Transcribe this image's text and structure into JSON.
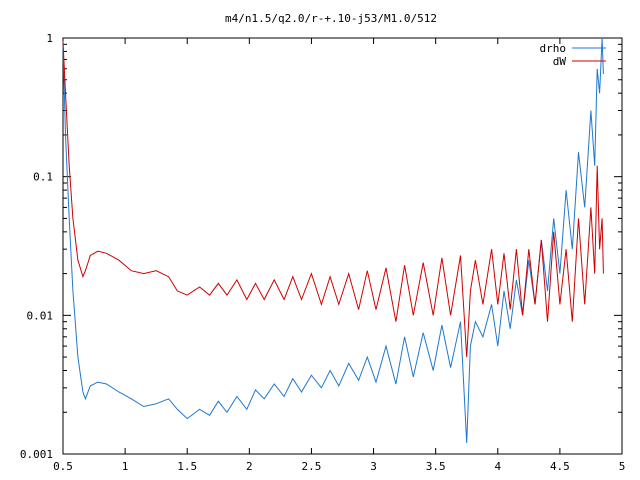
{
  "chart_data": {
    "type": "line",
    "title": "m4/n1.5/q2.0/r-+.10-j53/M1.0/512",
    "xlabel": "",
    "ylabel": "",
    "xlim": [
      0.5,
      5
    ],
    "ylim": [
      0.001,
      1
    ],
    "yscale": "log",
    "grid": false,
    "legend": "top-right",
    "x_ticks": [
      0.5,
      1,
      1.5,
      2,
      2.5,
      3,
      3.5,
      4,
      4.5,
      5
    ],
    "x_tick_labels": [
      "0.5",
      "1",
      "1.5",
      "2",
      "2.5",
      "3",
      "3.5",
      "4",
      "4.5",
      "5"
    ],
    "y_ticks": [
      0.001,
      0.01,
      0.1,
      1
    ],
    "y_tick_labels": [
      "0.001",
      "0.01",
      "0.1",
      "1"
    ],
    "series": [
      {
        "name": "drho",
        "color": "#1f78d0",
        "x": [
          0.5,
          0.52,
          0.55,
          0.58,
          0.62,
          0.66,
          0.68,
          0.72,
          0.78,
          0.85,
          0.95,
          1.05,
          1.15,
          1.25,
          1.35,
          1.42,
          1.5,
          1.6,
          1.68,
          1.75,
          1.82,
          1.9,
          1.98,
          2.05,
          2.12,
          2.2,
          2.28,
          2.35,
          2.42,
          2.5,
          2.58,
          2.65,
          2.72,
          2.8,
          2.88,
          2.95,
          3.02,
          3.1,
          3.18,
          3.25,
          3.32,
          3.4,
          3.48,
          3.55,
          3.62,
          3.7,
          3.75,
          3.78,
          3.82,
          3.88,
          3.95,
          4.0,
          4.05,
          4.1,
          4.15,
          4.2,
          4.25,
          4.3,
          4.35,
          4.4,
          4.45,
          4.5,
          4.55,
          4.6,
          4.65,
          4.7,
          4.75,
          4.78,
          4.8,
          4.82,
          4.84,
          4.85
        ],
        "values": [
          0.9,
          0.2,
          0.05,
          0.015,
          0.005,
          0.0028,
          0.0025,
          0.0031,
          0.0033,
          0.0032,
          0.0028,
          0.0025,
          0.0022,
          0.0023,
          0.0025,
          0.0021,
          0.0018,
          0.0021,
          0.0019,
          0.0024,
          0.002,
          0.0026,
          0.0021,
          0.0029,
          0.0025,
          0.0032,
          0.0026,
          0.0035,
          0.0028,
          0.0037,
          0.003,
          0.004,
          0.0031,
          0.0045,
          0.0034,
          0.005,
          0.0033,
          0.006,
          0.0032,
          0.007,
          0.0036,
          0.0075,
          0.004,
          0.0085,
          0.0042,
          0.009,
          0.0012,
          0.006,
          0.009,
          0.007,
          0.012,
          0.006,
          0.015,
          0.008,
          0.018,
          0.01,
          0.025,
          0.012,
          0.035,
          0.015,
          0.05,
          0.02,
          0.08,
          0.03,
          0.15,
          0.06,
          0.3,
          0.12,
          0.6,
          0.4,
          1.0,
          0.55
        ]
      },
      {
        "name": "dW",
        "color": "#d00000",
        "x": [
          0.5,
          0.52,
          0.55,
          0.58,
          0.62,
          0.66,
          0.68,
          0.72,
          0.78,
          0.85,
          0.95,
          1.05,
          1.15,
          1.25,
          1.35,
          1.42,
          1.5,
          1.6,
          1.68,
          1.75,
          1.82,
          1.9,
          1.98,
          2.05,
          2.12,
          2.2,
          2.28,
          2.35,
          2.42,
          2.5,
          2.58,
          2.65,
          2.72,
          2.8,
          2.88,
          2.95,
          3.02,
          3.1,
          3.18,
          3.25,
          3.32,
          3.4,
          3.48,
          3.55,
          3.62,
          3.7,
          3.75,
          3.78,
          3.82,
          3.88,
          3.95,
          4.0,
          4.05,
          4.1,
          4.15,
          4.2,
          4.25,
          4.3,
          4.35,
          4.4,
          4.45,
          4.5,
          4.55,
          4.6,
          4.65,
          4.7,
          4.75,
          4.78,
          4.8,
          4.82,
          4.84,
          4.85
        ],
        "values": [
          0.95,
          0.4,
          0.12,
          0.05,
          0.025,
          0.019,
          0.021,
          0.027,
          0.029,
          0.028,
          0.025,
          0.021,
          0.02,
          0.021,
          0.019,
          0.015,
          0.014,
          0.016,
          0.014,
          0.017,
          0.014,
          0.018,
          0.013,
          0.017,
          0.013,
          0.018,
          0.013,
          0.019,
          0.013,
          0.02,
          0.012,
          0.019,
          0.012,
          0.02,
          0.011,
          0.021,
          0.011,
          0.022,
          0.009,
          0.023,
          0.01,
          0.024,
          0.01,
          0.026,
          0.01,
          0.027,
          0.005,
          0.015,
          0.025,
          0.012,
          0.03,
          0.012,
          0.028,
          0.011,
          0.03,
          0.01,
          0.03,
          0.012,
          0.035,
          0.009,
          0.04,
          0.012,
          0.03,
          0.009,
          0.05,
          0.012,
          0.06,
          0.02,
          0.12,
          0.03,
          0.05,
          0.02
        ]
      }
    ]
  }
}
